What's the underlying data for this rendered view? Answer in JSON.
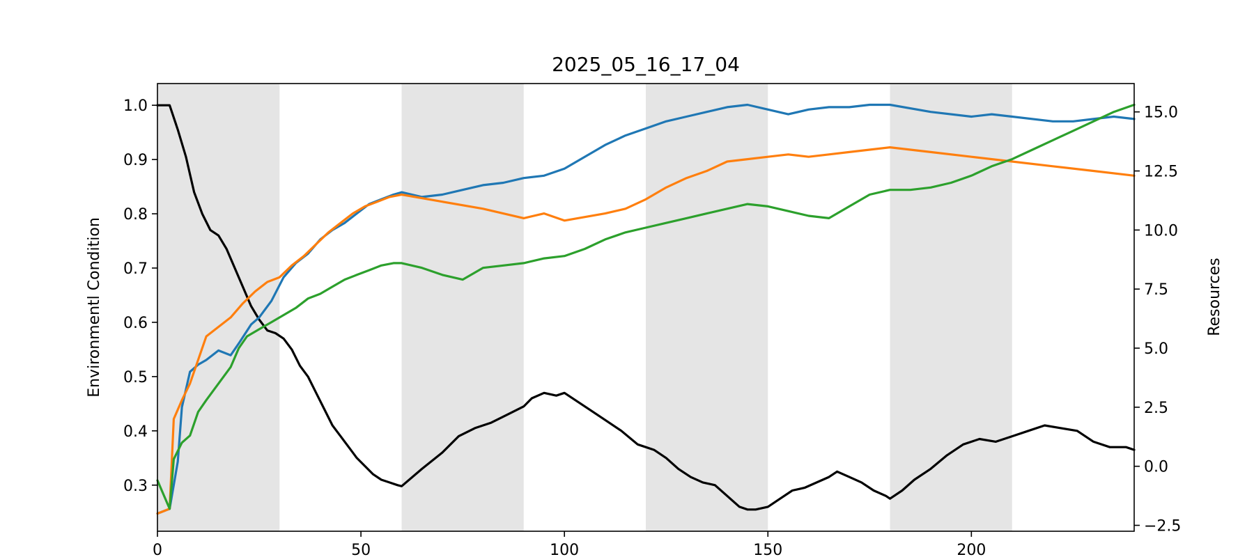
{
  "chart_data": {
    "type": "line",
    "title": "2025_05_16_17_04",
    "xlabel": "",
    "ylabel": "Environmentl Condition",
    "y2label": "Resources",
    "xlim": [
      0,
      240
    ],
    "ylim": [
      0.215,
      1.04
    ],
    "y2lim": [
      -2.75,
      16.2
    ],
    "xticks": [
      0,
      50,
      100,
      150,
      200
    ],
    "yticks": [
      0.3,
      0.4,
      0.5,
      0.6,
      0.7,
      0.8,
      0.9,
      1.0
    ],
    "y2ticks": [
      -2.5,
      0.0,
      2.5,
      5.0,
      7.5,
      10.0,
      12.5,
      15.0
    ],
    "xtick_labels": [
      "0",
      "50",
      "100",
      "150",
      "200"
    ],
    "ytick_labels": [
      "0.3",
      "0.4",
      "0.5",
      "0.6",
      "0.7",
      "0.8",
      "0.9",
      "1.0"
    ],
    "y2tick_labels": [
      "−2.5",
      "0.0",
      "2.5",
      "5.0",
      "7.5",
      "10.0",
      "12.5",
      "15.0"
    ],
    "shaded_bands": [
      [
        0,
        30
      ],
      [
        60,
        90
      ],
      [
        120,
        150
      ],
      [
        180,
        210
      ]
    ],
    "band_color": "#e5e5e5",
    "grid": false,
    "legend": "none",
    "series": [
      {
        "axis": "left",
        "color": "#000000",
        "x": [
          0,
          3,
          5,
          7,
          9,
          11,
          13,
          15,
          17,
          19,
          21,
          23,
          25,
          27,
          29,
          31,
          33,
          35,
          37,
          39,
          41,
          43,
          45,
          47,
          49,
          51,
          53,
          55,
          57,
          59,
          60,
          65,
          70,
          74,
          78,
          82,
          86,
          90,
          92,
          95,
          98,
          100,
          103,
          106,
          110,
          114,
          118,
          120,
          122,
          125,
          128,
          131,
          134,
          137,
          140,
          143,
          145,
          147,
          150,
          153,
          156,
          159,
          162,
          165,
          167,
          170,
          173,
          176,
          179,
          180,
          183,
          186,
          190,
          194,
          198,
          202,
          206,
          210,
          214,
          218,
          222,
          226,
          230,
          234,
          238,
          240
        ],
        "y": [
          1.0,
          1.0,
          0.955,
          0.905,
          0.84,
          0.8,
          0.77,
          0.76,
          0.735,
          0.7,
          0.665,
          0.63,
          0.605,
          0.585,
          0.58,
          0.57,
          0.55,
          0.52,
          0.5,
          0.47,
          0.44,
          0.41,
          0.39,
          0.37,
          0.35,
          0.335,
          0.32,
          0.31,
          0.305,
          0.3,
          0.298,
          0.33,
          0.36,
          0.39,
          0.405,
          0.415,
          0.43,
          0.445,
          0.46,
          0.47,
          0.465,
          0.47,
          0.455,
          0.44,
          0.42,
          0.4,
          0.375,
          0.37,
          0.365,
          0.35,
          0.33,
          0.315,
          0.305,
          0.3,
          0.28,
          0.26,
          0.255,
          0.255,
          0.26,
          0.275,
          0.29,
          0.295,
          0.305,
          0.315,
          0.325,
          0.315,
          0.305,
          0.29,
          0.28,
          0.275,
          0.29,
          0.31,
          0.33,
          0.355,
          0.375,
          0.385,
          0.38,
          0.39,
          0.4,
          0.41,
          0.405,
          0.4,
          0.38,
          0.37,
          0.37,
          0.365
        ]
      },
      {
        "axis": "right",
        "color": "#1f77b4",
        "x": [
          0,
          3,
          5,
          6,
          8,
          10,
          12,
          15,
          18,
          20,
          23,
          25,
          28,
          31,
          34,
          37,
          40,
          43,
          46,
          49,
          52,
          55,
          58,
          60,
          65,
          70,
          75,
          80,
          85,
          90,
          95,
          100,
          105,
          110,
          115,
          120,
          125,
          130,
          135,
          140,
          145,
          150,
          155,
          160,
          165,
          170,
          175,
          180,
          190,
          200,
          205,
          210,
          220,
          225,
          230,
          235,
          240
        ],
        "y": [
          -2.0,
          -1.8,
          0.2,
          2.5,
          4.0,
          4.3,
          4.5,
          4.9,
          4.7,
          5.2,
          6.0,
          6.3,
          7.0,
          8.0,
          8.6,
          9.0,
          9.6,
          10.0,
          10.3,
          10.7,
          11.1,
          11.3,
          11.5,
          11.6,
          11.4,
          11.5,
          11.7,
          11.9,
          12.0,
          12.2,
          12.3,
          12.6,
          13.1,
          13.6,
          14.0,
          14.3,
          14.6,
          14.8,
          15.0,
          15.2,
          15.3,
          15.1,
          14.9,
          15.1,
          15.2,
          15.2,
          15.3,
          15.3,
          15.0,
          14.8,
          14.9,
          14.8,
          14.6,
          14.6,
          14.7,
          14.8,
          14.7
        ]
      },
      {
        "axis": "right",
        "color": "#ff7f0e",
        "x": [
          0,
          3,
          4,
          6,
          8,
          10,
          12,
          15,
          18,
          21,
          24,
          27,
          30,
          33,
          36,
          39,
          42,
          45,
          48,
          51,
          54,
          57,
          60,
          70,
          80,
          90,
          95,
          100,
          110,
          115,
          120,
          125,
          130,
          135,
          140,
          145,
          150,
          155,
          160,
          165,
          170,
          175,
          180,
          190,
          200,
          210,
          220,
          230,
          240
        ],
        "y": [
          -2.0,
          -1.8,
          2.0,
          2.8,
          3.5,
          4.5,
          5.5,
          5.9,
          6.3,
          6.9,
          7.4,
          7.8,
          8.0,
          8.5,
          8.9,
          9.4,
          9.9,
          10.3,
          10.7,
          11.0,
          11.2,
          11.4,
          11.5,
          11.2,
          10.9,
          10.5,
          10.7,
          10.4,
          10.7,
          10.9,
          11.3,
          11.8,
          12.2,
          12.5,
          12.9,
          13.0,
          13.1,
          13.2,
          13.1,
          13.2,
          13.3,
          13.4,
          13.5,
          13.3,
          13.1,
          12.9,
          12.7,
          12.5,
          12.3
        ]
      },
      {
        "axis": "right",
        "color": "#2ca02c",
        "x": [
          0,
          3,
          4,
          6,
          8,
          10,
          12,
          15,
          18,
          20,
          22,
          25,
          28,
          31,
          34,
          37,
          40,
          43,
          46,
          49,
          52,
          55,
          58,
          60,
          65,
          70,
          75,
          80,
          85,
          90,
          95,
          100,
          105,
          110,
          115,
          120,
          125,
          130,
          135,
          140,
          145,
          150,
          155,
          160,
          165,
          170,
          175,
          180,
          185,
          190,
          195,
          200,
          205,
          210,
          215,
          220,
          225,
          230,
          235,
          240
        ],
        "y": [
          -0.6,
          -1.8,
          0.3,
          1.0,
          1.3,
          2.3,
          2.8,
          3.5,
          4.2,
          5.0,
          5.5,
          5.8,
          6.1,
          6.4,
          6.7,
          7.1,
          7.3,
          7.6,
          7.9,
          8.1,
          8.3,
          8.5,
          8.6,
          8.6,
          8.4,
          8.1,
          7.9,
          8.4,
          8.5,
          8.6,
          8.8,
          8.9,
          9.2,
          9.6,
          9.9,
          10.1,
          10.3,
          10.5,
          10.7,
          10.9,
          11.1,
          11.0,
          10.8,
          10.6,
          10.5,
          11.0,
          11.5,
          11.7,
          11.7,
          11.8,
          12.0,
          12.3,
          12.7,
          13.0,
          13.4,
          13.8,
          14.2,
          14.6,
          15.0,
          15.3
        ]
      }
    ]
  }
}
